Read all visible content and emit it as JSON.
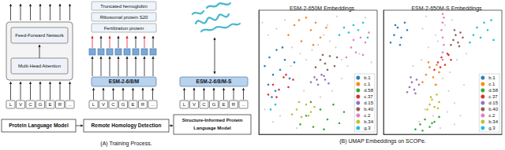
{
  "panel_a": {
    "plm": {
      "layers": [
        "Feed-Forward Network",
        "Multi-Head Attention"
      ],
      "tokens": [
        "L",
        "V",
        "C",
        "G",
        "E",
        "R",
        "..."
      ],
      "label": "Protein Language Model"
    },
    "homology": {
      "proteins": [
        "Truncated hemoglobin",
        "Ribosomal protein S20",
        "Fertilization protein"
      ],
      "model": "ESM-2-6/8/M",
      "tokens": [
        "L",
        "V",
        "C",
        "G",
        "E",
        "R",
        "..."
      ],
      "label": "Remote Homology Detection"
    },
    "structure": {
      "model": "ESM-2-6/8/M-S",
      "tokens": [
        "L",
        "V",
        "C",
        "G",
        "E",
        "R",
        "..."
      ],
      "label": "Structure-Informed Protein Language Model"
    },
    "caption": "(A) Training Process."
  },
  "panel_b": {
    "caption": "(B) UMAP Embeddings on SCOPe."
  },
  "chart_data": [
    {
      "type": "scatter",
      "title": "ESM-2-650M Embeddings",
      "xlim": [
        0,
        100
      ],
      "ylim": [
        0,
        100
      ],
      "tick_labels": false,
      "grid": false,
      "legend": "lower right",
      "series": [
        {
          "color": "#c0c0c0",
          "x": [
            3,
            8,
            15,
            22,
            28,
            35,
            40,
            45,
            50,
            55,
            60,
            65,
            70,
            75,
            85,
            95,
            5,
            18,
            32,
            62,
            70,
            38,
            52,
            27,
            66,
            12,
            58,
            90
          ],
          "values": [
            90,
            80,
            85,
            92,
            70,
            65,
            60,
            68,
            72,
            80,
            75,
            70,
            60,
            55,
            65,
            58,
            20,
            15,
            5,
            35,
            45,
            35,
            30,
            55,
            95,
            10,
            88,
            94
          ]
        },
        {
          "name": "b.1",
          "color": "#1f77b4",
          "x": [
            5,
            9,
            12,
            15,
            18,
            22,
            26,
            30,
            8,
            14,
            20,
            11
          ],
          "values": [
            55,
            62,
            48,
            68,
            52,
            60,
            45,
            58,
            40,
            35,
            70,
            30
          ]
        },
        {
          "name": "c.1",
          "color": "#ff7f0e",
          "x": [
            25,
            30,
            36,
            40,
            44,
            48,
            52,
            57,
            34,
            46
          ],
          "values": [
            80,
            88,
            75,
            94,
            84,
            90,
            78,
            86,
            92,
            72
          ]
        },
        {
          "name": "d.58",
          "color": "#2ca02c",
          "x": [
            35,
            40,
            46,
            52,
            58,
            63,
            68,
            72,
            44,
            55
          ],
          "values": [
            8,
            15,
            6,
            20,
            12,
            24,
            9,
            18,
            26,
            4
          ]
        },
        {
          "name": "c.37",
          "color": "#d62728",
          "x": [
            8,
            12,
            17,
            21,
            25,
            29,
            15,
            23
          ],
          "values": [
            32,
            40,
            36,
            46,
            38,
            44,
            30,
            48
          ]
        },
        {
          "name": "d.15",
          "color": "#9467bd",
          "x": [
            44,
            47,
            50,
            53,
            56,
            59,
            49,
            55
          ],
          "values": [
            42,
            46,
            40,
            48,
            44,
            41,
            44,
            47
          ]
        },
        {
          "name": "b.40",
          "color": "#8c564b",
          "x": [
            48,
            52,
            56,
            60,
            64,
            66,
            58,
            54
          ],
          "values": [
            54,
            60,
            57,
            63,
            55,
            62,
            52,
            64
          ]
        },
        {
          "name": "c.2",
          "color": "#e377c2",
          "x": [
            74,
            78,
            82,
            86,
            90,
            93,
            80,
            88
          ],
          "values": [
            62,
            70,
            66,
            78,
            74,
            82,
            76,
            64
          ]
        },
        {
          "name": "b.34",
          "color": "#bcbd22",
          "x": [
            28,
            32,
            36,
            40,
            44,
            47,
            34,
            42
          ],
          "values": [
            16,
            20,
            14,
            24,
            18,
            22,
            26,
            15
          ]
        },
        {
          "name": "g.3",
          "color": "#17becf",
          "x": [
            68,
            72,
            76,
            80,
            84,
            88,
            92,
            10,
            14
          ],
          "values": [
            80,
            86,
            82,
            88,
            84,
            90,
            78,
            20,
            24
          ]
        }
      ]
    },
    {
      "type": "scatter",
      "title": "ESM-2-650M-S Embeddings",
      "xlim": [
        0,
        100
      ],
      "ylim": [
        0,
        100
      ],
      "tick_labels": false,
      "grid": false,
      "legend": "lower right",
      "series": [
        {
          "color": "#c0c0c0",
          "x": [
            30,
            35,
            40,
            45,
            50,
            55,
            60,
            65,
            32,
            38,
            44,
            52,
            58,
            62,
            36,
            48,
            56,
            68,
            42,
            54,
            60,
            25,
            70,
            33,
            46
          ],
          "values": [
            10,
            20,
            30,
            40,
            45,
            35,
            25,
            15,
            60,
            70,
            80,
            88,
            92,
            60,
            95,
            5,
            50,
            40,
            15,
            18,
            8,
            55,
            65,
            85,
            75
          ]
        },
        {
          "name": "b.1",
          "color": "#1f77b4",
          "x": [
            6,
            9,
            12,
            15,
            18,
            20,
            10,
            14
          ],
          "values": [
            74,
            80,
            86,
            78,
            90,
            84,
            88,
            72
          ]
        },
        {
          "name": "c.1",
          "color": "#ff7f0e",
          "x": [
            33,
            36,
            39,
            42,
            45,
            47,
            38,
            44
          ],
          "values": [
            42,
            48,
            54,
            46,
            56,
            50,
            58,
            40
          ]
        },
        {
          "name": "d.58",
          "color": "#2ca02c",
          "x": [
            27,
            31,
            35,
            39,
            43,
            47,
            33,
            41
          ],
          "values": [
            4,
            8,
            12,
            6,
            10,
            14,
            3,
            9
          ]
        },
        {
          "name": "c.37",
          "color": "#d62728",
          "x": [
            43,
            46,
            49,
            52,
            55,
            57,
            48,
            54
          ],
          "values": [
            52,
            58,
            62,
            56,
            64,
            60,
            54,
            65
          ]
        },
        {
          "name": "d.15",
          "color": "#9467bd",
          "x": [
            20,
            22,
            24,
            26,
            28,
            30,
            23,
            27
          ],
          "values": [
            34,
            38,
            42,
            36,
            44,
            40,
            46,
            33
          ]
        },
        {
          "name": "b.40",
          "color": "#8c564b",
          "x": [
            57,
            59,
            61,
            63,
            65,
            67,
            60,
            64
          ],
          "values": [
            72,
            76,
            80,
            74,
            82,
            78,
            84,
            71
          ]
        },
        {
          "name": "c.2",
          "color": "#e377c2",
          "x": [
            50,
            50,
            51,
            50,
            49,
            50,
            51,
            50
          ],
          "values": [
            60,
            66,
            72,
            78,
            84,
            90,
            94,
            97
          ]
        },
        {
          "name": "b.34",
          "color": "#bcbd22",
          "x": [
            37,
            39,
            41,
            43,
            45,
            47,
            40,
            46
          ],
          "values": [
            20,
            24,
            28,
            22,
            32,
            26,
            30,
            21
          ]
        },
        {
          "name": "g.3",
          "color": "#17becf",
          "x": [
            73,
            76,
            79,
            82,
            85,
            88,
            91,
            93
          ],
          "values": [
            74,
            80,
            86,
            78,
            90,
            84,
            92,
            76
          ]
        }
      ]
    }
  ]
}
